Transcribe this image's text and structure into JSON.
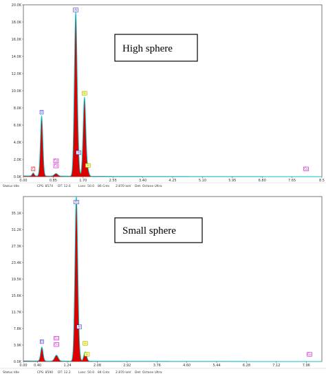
{
  "charts": [
    {
      "panel_title": "High sphere",
      "status_bar": [
        "Status Idle",
        "CPS: 8574",
        "DT: 12.6",
        "Lsec: 50.0",
        "86 Cnts",
        "2.870 keV",
        "Det: Octane Ultra"
      ]
    },
    {
      "panel_title": "Small sphere",
      "status_bar": [
        "Status Idle",
        "CPS: 8590",
        "DT: 12.2",
        "Lsec: 50.0",
        "84 Cnts",
        "2.870 keV",
        "Det: Octane Ultra"
      ]
    }
  ],
  "colors": {
    "fill": "#dd0000",
    "outline": "#00cccc",
    "label_blue": "#3333cc",
    "label_magenta": "#cc00cc",
    "label_yellow": "#aaaa00",
    "label_red": "#dd0000"
  },
  "chart_data": [
    {
      "type": "area",
      "title": "High sphere",
      "xlabel": "",
      "ylabel": "",
      "xlim": [
        0,
        8.5
      ],
      "ylim": [
        0,
        20000
      ],
      "x_ticks": [
        "0.00",
        "0.85",
        "1.70",
        "2.55",
        "3.40",
        "4.25",
        "5.10",
        "5.95",
        "6.80",
        "7.65",
        "8.5"
      ],
      "y_ticks": [
        "2.0K",
        "4.0K",
        "6.0K",
        "8.0K",
        "10.0K",
        "12.0K",
        "14.0K",
        "16.0K",
        "18.0K",
        "20.0K"
      ],
      "peaks": [
        {
          "x": 0.28,
          "y": 350,
          "w": 0.03
        },
        {
          "x": 0.52,
          "y": 7000,
          "w": 0.035
        },
        {
          "x": 0.93,
          "y": 300,
          "w": 0.05
        },
        {
          "x": 1.49,
          "y": 19000,
          "w": 0.04
        },
        {
          "x": 1.56,
          "y": 1500,
          "w": 0.03
        },
        {
          "x": 1.74,
          "y": 9200,
          "w": 0.04
        },
        {
          "x": 1.84,
          "y": 600,
          "w": 0.03
        }
      ],
      "background": 90,
      "peak_labels": [
        {
          "text": "C",
          "x": 0.28,
          "y": 800,
          "color": "label_red"
        },
        {
          "text": "O",
          "x": 0.52,
          "y": 7400,
          "color": "label_blue"
        },
        {
          "text": "Cu",
          "x": 0.93,
          "y": 1750,
          "color": "label_magenta"
        },
        {
          "text": "Cu",
          "x": 0.93,
          "y": 1150,
          "color": "label_magenta"
        },
        {
          "text": "Al",
          "x": 1.49,
          "y": 19300,
          "color": "label_blue"
        },
        {
          "text": "Al",
          "x": 1.57,
          "y": 2700,
          "color": "label_blue"
        },
        {
          "text": "Si",
          "x": 1.74,
          "y": 9600,
          "color": "label_yellow"
        },
        {
          "text": "Si",
          "x": 1.84,
          "y": 1200,
          "color": "label_yellow"
        },
        {
          "text": "Cu",
          "x": 8.05,
          "y": 800,
          "color": "label_magenta"
        }
      ]
    },
    {
      "type": "area",
      "title": "Small sphere",
      "xlabel": "",
      "ylabel": "",
      "xlim": [
        0,
        8.4
      ],
      "ylim": [
        0,
        39000
      ],
      "x_ticks": [
        "0.00",
        "0.40",
        "1.24",
        "2.08",
        "2.92",
        "3.76",
        "4.60",
        "5.44",
        "6.28",
        "7.12",
        "7.96"
      ],
      "x_tick_values": [
        0.0,
        0.4,
        1.24,
        2.08,
        2.92,
        3.76,
        4.6,
        5.44,
        6.28,
        7.12,
        7.96
      ],
      "y_ticks": [
        "3.9K",
        "7.8K",
        "11.7K",
        "15.6K",
        "19.5K",
        "23.4K",
        "27.3K",
        "31.2K",
        "35.1K"
      ],
      "peaks": [
        {
          "x": 0.52,
          "y": 3300,
          "w": 0.035
        },
        {
          "x": 0.93,
          "y": 1400,
          "w": 0.05
        },
        {
          "x": 1.49,
          "y": 39000,
          "w": 0.04
        },
        {
          "x": 1.57,
          "y": 1500,
          "w": 0.03
        },
        {
          "x": 1.74,
          "y": 2200,
          "w": 0.04
        }
      ],
      "background": 150,
      "peak_labels": [
        {
          "text": "O",
          "x": 0.52,
          "y": 4500,
          "color": "label_blue"
        },
        {
          "text": "Cu",
          "x": 0.93,
          "y": 5300,
          "color": "label_magenta"
        },
        {
          "text": "Cu",
          "x": 0.93,
          "y": 3800,
          "color": "label_magenta"
        },
        {
          "text": "Al",
          "x": 1.49,
          "y": 37500,
          "color": "label_blue"
        },
        {
          "text": "Al",
          "x": 1.57,
          "y": 8000,
          "color": "label_blue"
        },
        {
          "text": "Si",
          "x": 1.74,
          "y": 4100,
          "color": "label_yellow"
        },
        {
          "text": "Si",
          "x": 1.79,
          "y": 1500,
          "color": "label_yellow"
        },
        {
          "text": "Cu",
          "x": 8.05,
          "y": 1500,
          "color": "label_magenta"
        }
      ]
    }
  ]
}
